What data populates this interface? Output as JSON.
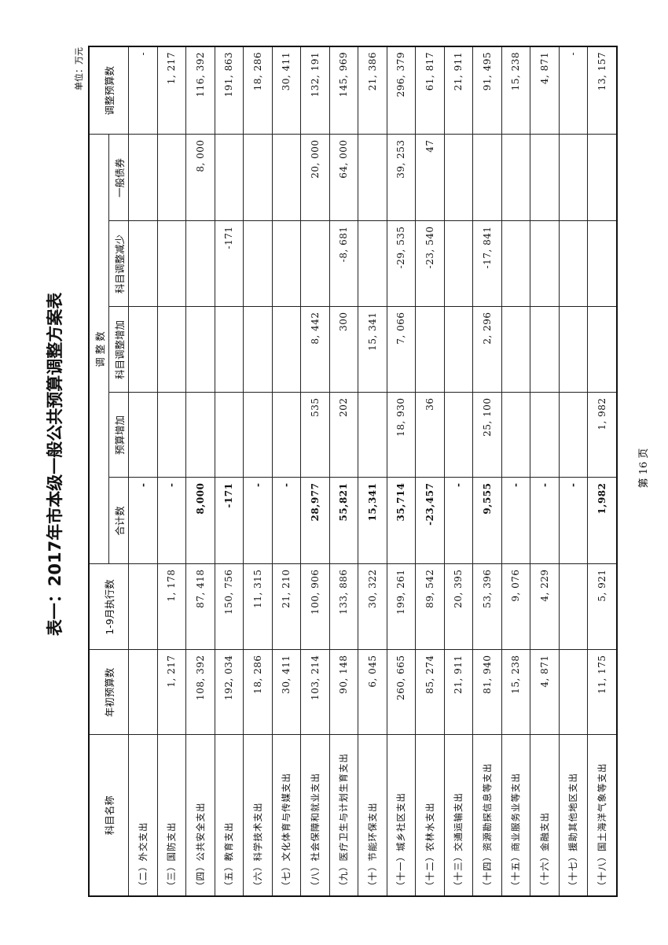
{
  "title": "表一：2017年市本级一般公共预算调整方案表",
  "unit": "单位：万元",
  "footer": "第 16 页",
  "headers": {
    "name": "科目名称",
    "initial_budget": "年初预算数",
    "executed_jan_sep": "1-9月执行数",
    "adjustment_group": "调 整 数",
    "total": "合计数",
    "budget_increase": "预算增加",
    "subject_increase": "科目调整增加",
    "subject_decrease": "科目调整减少",
    "general_bond": "一般债券",
    "adjusted_budget": "调整预算数"
  },
  "rows": [
    {
      "name": "（二）外交支出",
      "initial": "",
      "executed": "",
      "total": "-",
      "budget_inc": "",
      "subj_inc": "",
      "subj_dec": "",
      "bond": "",
      "adjusted": "-"
    },
    {
      "name": "（三）国防支出",
      "initial": "1, 217",
      "executed": "1, 178",
      "total": "-",
      "budget_inc": "",
      "subj_inc": "",
      "subj_dec": "",
      "bond": "",
      "adjusted": "1, 217"
    },
    {
      "name": "（四）公共安全支出",
      "initial": "108, 392",
      "executed": "87, 418",
      "total": "8,000",
      "budget_inc": "",
      "subj_inc": "",
      "subj_dec": "",
      "bond": "8, 000",
      "adjusted": "116, 392"
    },
    {
      "name": "（五）教育支出",
      "initial": "192, 034",
      "executed": "150, 756",
      "total": "-171",
      "budget_inc": "",
      "subj_inc": "",
      "subj_dec": "-171",
      "bond": "",
      "adjusted": "191, 863"
    },
    {
      "name": "（六）科学技术支出",
      "initial": "18, 286",
      "executed": "11, 315",
      "total": "-",
      "budget_inc": "",
      "subj_inc": "",
      "subj_dec": "",
      "bond": "",
      "adjusted": "18, 286"
    },
    {
      "name": "（七）文化体育与传媒支出",
      "initial": "30, 411",
      "executed": "21, 210",
      "total": "-",
      "budget_inc": "",
      "subj_inc": "",
      "subj_dec": "",
      "bond": "",
      "adjusted": "30, 411"
    },
    {
      "name": "（八）社会保障和就业支出",
      "initial": "103, 214",
      "executed": "100, 906",
      "total": "28,977",
      "budget_inc": "535",
      "subj_inc": "8, 442",
      "subj_dec": "",
      "bond": "20, 000",
      "adjusted": "132, 191"
    },
    {
      "name": "（九）医疗卫生与计划生育支出",
      "initial": "90, 148",
      "executed": "133, 886",
      "total": "55,821",
      "budget_inc": "202",
      "subj_inc": "300",
      "subj_dec": "-8, 681",
      "bond": "64, 000",
      "adjusted": "145, 969"
    },
    {
      "name": "（十）节能环保支出",
      "initial": "6, 045",
      "executed": "30, 322",
      "total": "15,341",
      "budget_inc": "",
      "subj_inc": "15, 341",
      "subj_dec": "",
      "bond": "",
      "adjusted": "21, 386"
    },
    {
      "name": "（十一）城乡社区支出",
      "initial": "260, 665",
      "executed": "199, 261",
      "total": "35,714",
      "budget_inc": "18, 930",
      "subj_inc": "7, 066",
      "subj_dec": "-29, 535",
      "bond": "39, 253",
      "adjusted": "296, 379"
    },
    {
      "name": "（十二）农林水支出",
      "initial": "85, 274",
      "executed": "89, 542",
      "total": "-23,457",
      "budget_inc": "36",
      "subj_inc": "",
      "subj_dec": "-23, 540",
      "bond": "47",
      "adjusted": "61, 817"
    },
    {
      "name": "（十三）交通运输支出",
      "initial": "21, 911",
      "executed": "20, 395",
      "total": "-",
      "budget_inc": "",
      "subj_inc": "",
      "subj_dec": "",
      "bond": "",
      "adjusted": "21, 911"
    },
    {
      "name": "（十四）资源勘探信息等支出",
      "initial": "81, 940",
      "executed": "53, 396",
      "total": "9,555",
      "budget_inc": "25, 100",
      "subj_inc": "2, 296",
      "subj_dec": "-17, 841",
      "bond": "",
      "adjusted": "91, 495"
    },
    {
      "name": "（十五）商业服务业等支出",
      "initial": "15, 238",
      "executed": "9, 076",
      "total": "-",
      "budget_inc": "",
      "subj_inc": "",
      "subj_dec": "",
      "bond": "",
      "adjusted": "15, 238"
    },
    {
      "name": "（十六）金融支出",
      "initial": "4, 871",
      "executed": "4, 229",
      "total": "-",
      "budget_inc": "",
      "subj_inc": "",
      "subj_dec": "",
      "bond": "",
      "adjusted": "4, 871"
    },
    {
      "name": "（十七）援助其他地区支出",
      "initial": "",
      "executed": "",
      "total": "-",
      "budget_inc": "",
      "subj_inc": "",
      "subj_dec": "",
      "bond": "",
      "adjusted": "-"
    },
    {
      "name": "（十八）国土海洋气象等支出",
      "initial": "11, 175",
      "executed": "5, 921",
      "total": "1,982",
      "budget_inc": "1, 982",
      "subj_inc": "",
      "subj_dec": "",
      "bond": "",
      "adjusted": "13, 157"
    }
  ]
}
